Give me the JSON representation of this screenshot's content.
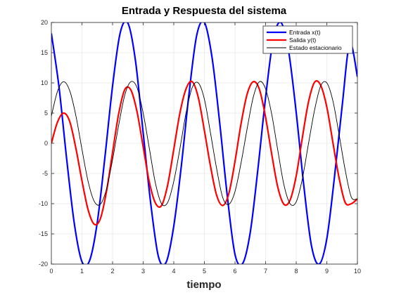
{
  "chart_data": {
    "type": "line",
    "title": "Entrada y Respuesta del sistema",
    "xlabel": "tiempo",
    "ylabel": "",
    "xlim": [
      0,
      10
    ],
    "ylim": [
      -20,
      20
    ],
    "grid": true,
    "legend_position": "top-right",
    "xticks": [
      "0",
      "1",
      "2",
      "3",
      "4",
      "5",
      "6",
      "7",
      "8",
      "9",
      "10"
    ],
    "yticks": [
      "-20",
      "-15",
      "-10",
      "-5",
      "0",
      "5",
      "10",
      "15",
      "20"
    ],
    "series": [
      {
        "name": "Entrada x(t)",
        "color": "#0000ff",
        "x": [
          0,
          0.25,
          0.5,
          0.75,
          1,
          1.25,
          1.5,
          1.75,
          2,
          2.25,
          2.5,
          2.75,
          3,
          3.25,
          3.5,
          3.75,
          4,
          4.25,
          4.5,
          4.75,
          5,
          5.25,
          5.5,
          5.75,
          6,
          6.25,
          6.5,
          6.75,
          7,
          7.25,
          7.5,
          7.75,
          8,
          8.25,
          8.5,
          8.75,
          9,
          9.25,
          9.5,
          9.75,
          10
        ],
        "y": [
          18.2,
          9.3,
          -2.6,
          -13.3,
          -19.6,
          -19.4,
          -13.1,
          -2.3,
          9.5,
          18.3,
          19.9,
          13.6,
          1.7,
          -10.1,
          -18.8,
          -19.7,
          -13.7,
          -3.6,
          8.3,
          17.9,
          20,
          14.2,
          3.4,
          -8.8,
          -18.4,
          -19.9,
          -14.7,
          -4.2,
          7.6,
          17.2,
          20,
          15.3,
          5.1,
          -7.1,
          -17.0,
          -20,
          -15.8,
          -5.6,
          6.1,
          16.5,
          11
        ]
      },
      {
        "name": "Salida y(t)",
        "color": "#ff0000",
        "x": [
          0,
          0.2,
          0.4,
          0.6,
          0.8,
          1.0,
          1.2,
          1.4,
          1.6,
          1.8,
          2.0,
          2.2,
          2.4,
          2.6,
          2.8,
          3.0,
          3.2,
          3.4,
          3.6,
          3.8,
          4.0,
          4.2,
          4.4,
          4.6,
          4.8,
          5.0,
          5.2,
          5.4,
          5.6,
          5.8,
          6.0,
          6.2,
          6.4,
          6.6,
          6.8,
          7.0,
          7.2,
          7.4,
          7.6,
          7.8,
          8.0,
          8.2,
          8.4,
          8.6,
          8.8,
          9.0,
          9.2,
          9.4,
          9.6,
          9.8,
          10.0
        ],
        "y": [
          0,
          3.5,
          5,
          3.6,
          -0.8,
          -6.2,
          -11.0,
          -13.4,
          -12.5,
          -8.0,
          -1.5,
          4.9,
          8.9,
          8.8,
          5.2,
          -0.6,
          -6.4,
          -9.9,
          -10.3,
          -6.9,
          -1.0,
          5.0,
          9.0,
          10.2,
          7.6,
          2.1,
          -3.8,
          -8.6,
          -10.3,
          -8.3,
          -3.0,
          3.3,
          8.2,
          10.2,
          8.9,
          4.3,
          -1.8,
          -7.3,
          -10.1,
          -9.4,
          -5.4,
          0.9,
          6.8,
          10.1,
          9.6,
          6.0,
          0.1,
          -5.7,
          -9.8,
          -10.0,
          -9.2
        ]
      },
      {
        "name": "Estado estacionario",
        "color": "#000000",
        "x": [
          0,
          0.2,
          0.4,
          0.6,
          0.8,
          1.0,
          1.2,
          1.4,
          1.6,
          1.8,
          2.0,
          2.2,
          2.4,
          2.6,
          2.8,
          3.0,
          3.2,
          3.4,
          3.6,
          3.8,
          4.0,
          4.2,
          4.4,
          4.6,
          4.8,
          5.0,
          5.2,
          5.4,
          5.6,
          5.8,
          6.0,
          6.2,
          6.4,
          6.6,
          6.8,
          7.0,
          7.2,
          7.4,
          7.6,
          7.8,
          8.0,
          8.2,
          8.4,
          8.6,
          8.8,
          9.0,
          9.2,
          9.4,
          9.6,
          9.8,
          10.0
        ],
        "y": [
          4.5,
          8.6,
          10.2,
          8.7,
          4.6,
          -1.0,
          -6.3,
          -9.6,
          -10.1,
          -7.6,
          -2.7,
          3.0,
          8.0,
          10.2,
          9.2,
          5.0,
          -0.8,
          -6.6,
          -10.0,
          -9.8,
          -6.3,
          -0.9,
          5.0,
          9.2,
          10.0,
          7.3,
          1.7,
          -4.2,
          -9.0,
          -10.1,
          -8.0,
          -3.2,
          2.5,
          7.7,
          10.2,
          9.0,
          4.8,
          -1.2,
          -6.9,
          -10.0,
          -9.7,
          -5.9,
          -0.1,
          5.5,
          9.5,
          10.0,
          7.0,
          1.5,
          -4.4,
          -8.9,
          -9.2
        ]
      }
    ]
  }
}
